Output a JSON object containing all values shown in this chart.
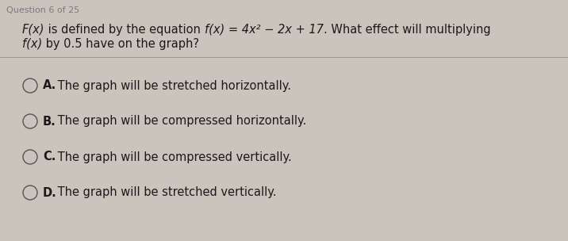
{
  "header": "Question 6 of 25",
  "q_line1_parts": [
    {
      "text": "F(x)",
      "italic": true,
      "bold": false
    },
    {
      "text": " is defined by the equation ",
      "italic": false,
      "bold": false
    },
    {
      "text": "f(x) = 4x² − 2x + 17",
      "italic": true,
      "bold": false
    },
    {
      "text": ". What effect will multiplying",
      "italic": false,
      "bold": false
    }
  ],
  "q_line2_parts": [
    {
      "text": "f(x)",
      "italic": true,
      "bold": false
    },
    {
      "text": " by 0.5 have on the graph?",
      "italic": false,
      "bold": false
    }
  ],
  "options": [
    {
      "label": "A.",
      "text": " The graph will be stretched horizontally."
    },
    {
      "label": "B.",
      "text": " The graph will be compressed horizontally."
    },
    {
      "label": "C.",
      "text": " The graph will be compressed vertically."
    },
    {
      "label": "D.",
      "text": " The graph will be stretched vertically."
    }
  ],
  "bg_color": "#cac4bc",
  "header_color": "#7a7a7a",
  "question_color": "#1a1a1a",
  "option_color": "#1a1a1a",
  "divider_color": "#a09890",
  "circle_edge_color": "#555555",
  "circle_face_color": "#cac4bc",
  "header_fontsize": 8.0,
  "question_fontsize": 10.5,
  "option_fontsize": 10.5,
  "fig_width": 7.16,
  "fig_height": 3.04,
  "dpi": 100
}
